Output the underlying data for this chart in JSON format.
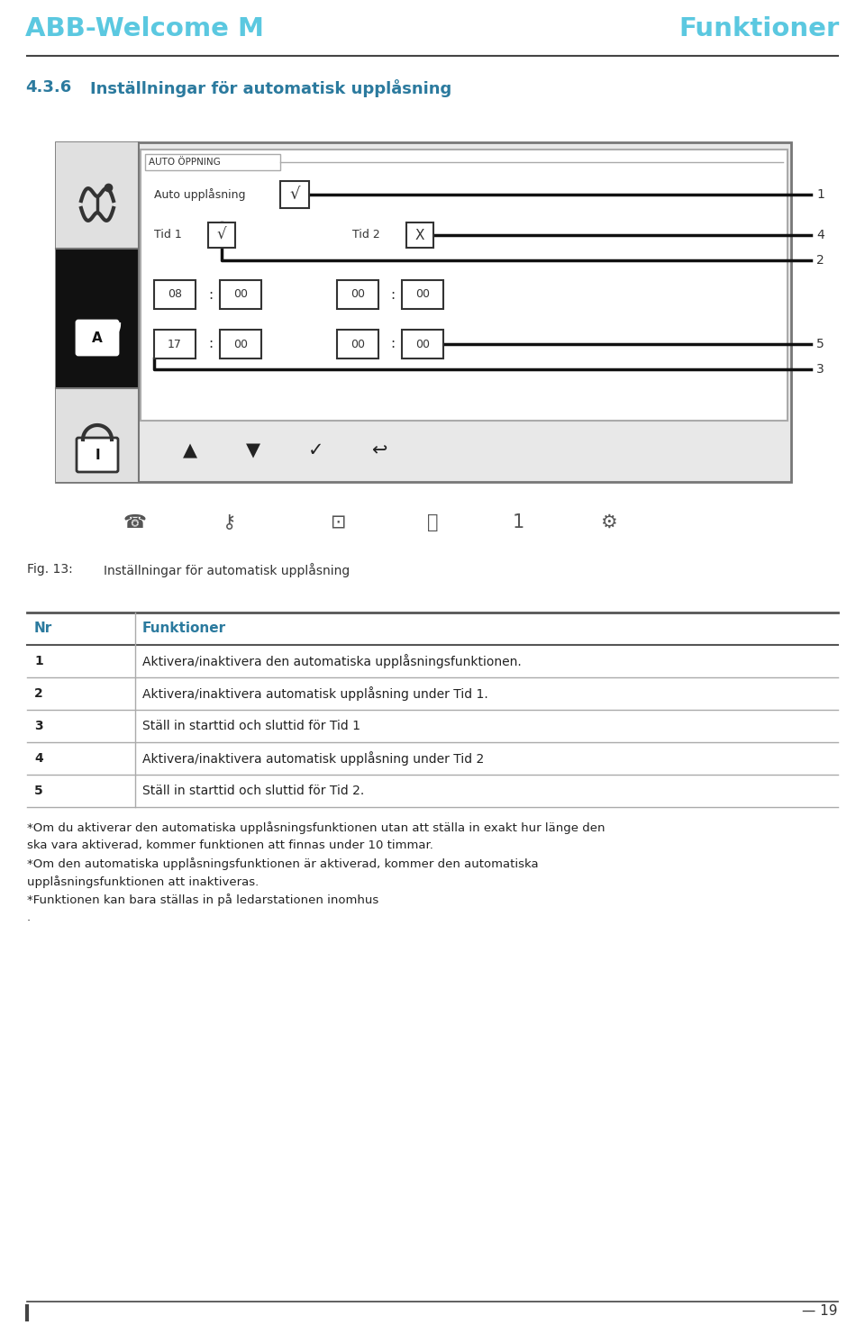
{
  "header_left": "ABB-Welcome M",
  "header_right": "Funktioner",
  "header_color": "#5bc8e0",
  "section_title_color": "#2b7a9e",
  "section_number": "4.3.6",
  "section_title": "Inställningar för automatisk upplåsning",
  "fig_label": "Fig. 13:",
  "fig_caption": "Inställningar för automatisk upplåsning",
  "table_header_nr": "Nr",
  "table_header_func": "Funktioner",
  "table_rows": [
    {
      "nr": "1",
      "text": "Aktivera/inaktivera den automatiska upplåsningsfunktionen."
    },
    {
      "nr": "2",
      "text": "Aktivera/inaktivera automatisk upplåsning under Tid 1."
    },
    {
      "nr": "3",
      "text": "Ställ in starttid och sluttid för Tid 1"
    },
    {
      "nr": "4",
      "text": "Aktivera/inaktivera automatisk upplåsning under Tid 2"
    },
    {
      "nr": "5",
      "text": "Ställ in starttid och sluttid för Tid 2."
    }
  ],
  "footnote1": "*Om du aktiverar den automatiska upplåsningsfunktionen utan att ställa in exakt hur länge den",
  "footnote1b": "ska vara aktiverad, kommer funktionen att finnas under 10 timmar.",
  "footnote2": "*Om den automatiska upplåsningsfunktionen är aktiverad, kommer den automatiska",
  "footnote2b": "upplåsningsfunktionen att inaktiveras.",
  "footnote3": "*Funktionen kan bara ställas in på ledarstationen inomhus",
  "footnote4": ".",
  "page_number": "19",
  "bg_color": "#ffffff",
  "text_color": "#222222"
}
